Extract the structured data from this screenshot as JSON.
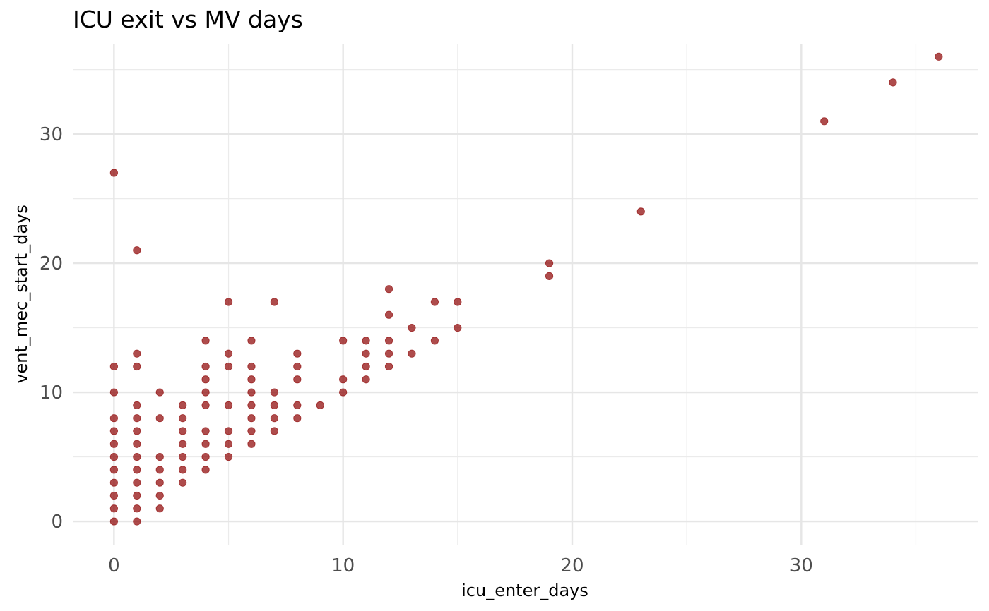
{
  "chart_data": {
    "type": "scatter",
    "title": "ICU exit vs MV days",
    "xlabel": "icu_enter_days",
    "ylabel": "vent_mec_start_days",
    "xlim": [
      -1.8,
      37.7
    ],
    "ylim": [
      -1.8,
      37.0
    ],
    "x_ticks": [
      0,
      10,
      20,
      30
    ],
    "y_ticks": [
      0,
      10,
      20,
      30
    ],
    "x_minor": [
      5,
      15,
      25,
      35
    ],
    "y_minor": [
      5,
      15,
      25,
      35
    ],
    "grid": true,
    "legend": "none",
    "point_color": "#8B0000",
    "points": [
      [
        0,
        0
      ],
      [
        0,
        1
      ],
      [
        0,
        2
      ],
      [
        0,
        3
      ],
      [
        0,
        4
      ],
      [
        0,
        5
      ],
      [
        0,
        6
      ],
      [
        0,
        7
      ],
      [
        0,
        8
      ],
      [
        0,
        10
      ],
      [
        0,
        12
      ],
      [
        0,
        27
      ],
      [
        1,
        0
      ],
      [
        1,
        1
      ],
      [
        1,
        2
      ],
      [
        1,
        3
      ],
      [
        1,
        4
      ],
      [
        1,
        5
      ],
      [
        1,
        6
      ],
      [
        1,
        7
      ],
      [
        1,
        8
      ],
      [
        1,
        9
      ],
      [
        1,
        12
      ],
      [
        1,
        13
      ],
      [
        1,
        21
      ],
      [
        2,
        1
      ],
      [
        2,
        2
      ],
      [
        2,
        3
      ],
      [
        2,
        4
      ],
      [
        2,
        5
      ],
      [
        2,
        8
      ],
      [
        2,
        10
      ],
      [
        3,
        3
      ],
      [
        3,
        4
      ],
      [
        3,
        5
      ],
      [
        3,
        6
      ],
      [
        3,
        7
      ],
      [
        3,
        8
      ],
      [
        3,
        9
      ],
      [
        4,
        4
      ],
      [
        4,
        5
      ],
      [
        4,
        6
      ],
      [
        4,
        7
      ],
      [
        4,
        9
      ],
      [
        4,
        10
      ],
      [
        4,
        11
      ],
      [
        4,
        12
      ],
      [
        4,
        14
      ],
      [
        5,
        5
      ],
      [
        5,
        6
      ],
      [
        5,
        7
      ],
      [
        5,
        9
      ],
      [
        5,
        12
      ],
      [
        5,
        13
      ],
      [
        5,
        17
      ],
      [
        6,
        6
      ],
      [
        6,
        7
      ],
      [
        6,
        8
      ],
      [
        6,
        9
      ],
      [
        6,
        10
      ],
      [
        6,
        11
      ],
      [
        6,
        12
      ],
      [
        6,
        14
      ],
      [
        7,
        7
      ],
      [
        7,
        8
      ],
      [
        7,
        9
      ],
      [
        7,
        10
      ],
      [
        7,
        17
      ],
      [
        8,
        8
      ],
      [
        8,
        9
      ],
      [
        8,
        11
      ],
      [
        8,
        12
      ],
      [
        8,
        13
      ],
      [
        9,
        9
      ],
      [
        10,
        10
      ],
      [
        10,
        11
      ],
      [
        10,
        14
      ],
      [
        11,
        11
      ],
      [
        11,
        12
      ],
      [
        11,
        13
      ],
      [
        11,
        14
      ],
      [
        12,
        12
      ],
      [
        12,
        13
      ],
      [
        12,
        14
      ],
      [
        12,
        16
      ],
      [
        12,
        18
      ],
      [
        13,
        13
      ],
      [
        13,
        15
      ],
      [
        14,
        14
      ],
      [
        14,
        17
      ],
      [
        15,
        15
      ],
      [
        15,
        17
      ],
      [
        19,
        19
      ],
      [
        19,
        20
      ],
      [
        23,
        24
      ],
      [
        31,
        31
      ],
      [
        34,
        34
      ],
      [
        36,
        36
      ]
    ]
  }
}
